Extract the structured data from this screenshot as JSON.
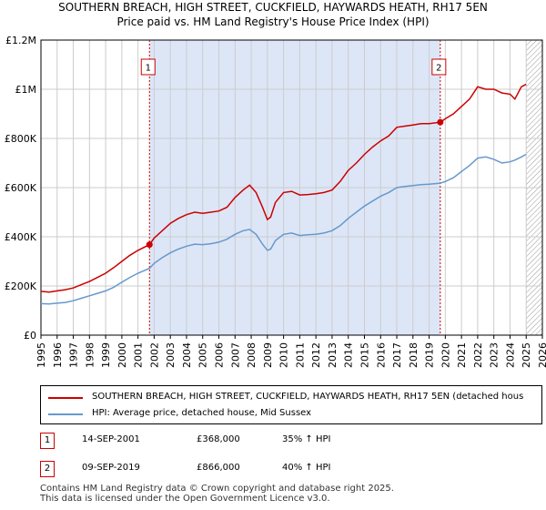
{
  "title_line1": "SOUTHERN BREACH, HIGH STREET, CUCKFIELD, HAYWARDS HEATH, RH17 5EN",
  "title_line2": "Price paid vs. HM Land Registry's House Price Index (HPI)",
  "colors": {
    "property": "#cc0000",
    "hpi": "#6699cc",
    "shade": "#dde6f7",
    "grid": "#cccccc"
  },
  "legend": {
    "property_label": "SOUTHERN BREACH, HIGH STREET, CUCKFIELD, HAYWARDS HEATH, RH17 5EN (detached hous",
    "hpi_label": "HPI: Average price, detached house, Mid Sussex"
  },
  "transactions": [
    {
      "id": "1",
      "date": "14-SEP-2001",
      "price": "£368,000",
      "hpi_change": "35% ↑ HPI"
    },
    {
      "id": "2",
      "date": "09-SEP-2019",
      "price": "£866,000",
      "hpi_change": "40% ↑ HPI"
    }
  ],
  "footer": {
    "line1": "Contains HM Land Registry data © Crown copyright and database right 2025.",
    "line2": "This data is licensed under the Open Government Licence v3.0."
  },
  "chart_data": {
    "type": "line",
    "xlim": [
      1995,
      2026
    ],
    "ylim": [
      0,
      1200000
    ],
    "yticks": [
      {
        "value": 0,
        "label": "£0"
      },
      {
        "value": 200000,
        "label": "£200K"
      },
      {
        "value": 400000,
        "label": "£400K"
      },
      {
        "value": 600000,
        "label": "£600K"
      },
      {
        "value": 800000,
        "label": "£800K"
      },
      {
        "value": 1000000,
        "label": "£1M"
      },
      {
        "value": 1200000,
        "label": "£1.2M"
      }
    ],
    "xticks": [
      "1995",
      "1996",
      "1997",
      "1998",
      "1999",
      "2000",
      "2001",
      "2002",
      "2003",
      "2004",
      "2005",
      "2006",
      "2007",
      "2008",
      "2009",
      "2010",
      "2011",
      "2012",
      "2013",
      "2014",
      "2015",
      "2016",
      "2017",
      "2018",
      "2019",
      "2020",
      "2021",
      "2022",
      "2023",
      "2024",
      "2025",
      "2026"
    ],
    "shaded_period": [
      2001.71,
      2019.69
    ],
    "hatched_from": 2025.0,
    "sales": [
      {
        "label": "1",
        "x": 2001.71,
        "y": 368000
      },
      {
        "label": "2",
        "x": 2019.69,
        "y": 866000
      }
    ],
    "series": [
      {
        "name": "property",
        "x": [
          1995.0,
          1995.5,
          1996.0,
          1996.5,
          1997.0,
          1997.5,
          1998.0,
          1998.5,
          1999.0,
          1999.5,
          2000.0,
          2000.5,
          2001.0,
          2001.71,
          2002.0,
          2002.5,
          2003.0,
          2003.5,
          2004.0,
          2004.5,
          2005.0,
          2005.5,
          2006.0,
          2006.5,
          2007.0,
          2007.5,
          2007.9,
          2008.3,
          2008.7,
          2009.0,
          2009.2,
          2009.5,
          2010.0,
          2010.5,
          2011.0,
          2011.5,
          2012.0,
          2012.5,
          2013.0,
          2013.5,
          2014.0,
          2014.5,
          2015.0,
          2015.5,
          2016.0,
          2016.5,
          2017.0,
          2017.5,
          2018.0,
          2018.5,
          2019.0,
          2019.69,
          2020.0,
          2020.5,
          2021.0,
          2021.5,
          2022.0,
          2022.5,
          2023.0,
          2023.5,
          2024.0,
          2024.3,
          2024.7,
          2025.0
        ],
        "y": [
          178000,
          175000,
          180000,
          185000,
          192000,
          205000,
          218000,
          235000,
          252000,
          275000,
          300000,
          325000,
          345000,
          368000,
          395000,
          425000,
          455000,
          475000,
          490000,
          500000,
          495000,
          500000,
          505000,
          520000,
          560000,
          590000,
          610000,
          580000,
          520000,
          470000,
          480000,
          540000,
          580000,
          585000,
          570000,
          572000,
          575000,
          580000,
          590000,
          625000,
          670000,
          700000,
          735000,
          765000,
          790000,
          810000,
          845000,
          850000,
          855000,
          860000,
          860000,
          866000,
          880000,
          900000,
          930000,
          960000,
          1010000,
          1000000,
          1000000,
          985000,
          980000,
          960000,
          1010000,
          1020000
        ]
      },
      {
        "name": "hpi",
        "x": [
          1995.0,
          1995.5,
          1996.0,
          1996.5,
          1997.0,
          1997.5,
          1998.0,
          1998.5,
          1999.0,
          1999.5,
          2000.0,
          2000.5,
          2001.0,
          2001.71,
          2002.0,
          2002.5,
          2003.0,
          2003.5,
          2004.0,
          2004.5,
          2005.0,
          2005.5,
          2006.0,
          2006.5,
          2007.0,
          2007.5,
          2007.9,
          2008.3,
          2008.7,
          2009.0,
          2009.2,
          2009.5,
          2010.0,
          2010.5,
          2011.0,
          2011.5,
          2012.0,
          2012.5,
          2013.0,
          2013.5,
          2014.0,
          2014.5,
          2015.0,
          2015.5,
          2016.0,
          2016.5,
          2017.0,
          2017.5,
          2018.0,
          2018.5,
          2019.0,
          2019.69,
          2020.0,
          2020.5,
          2021.0,
          2021.5,
          2022.0,
          2022.5,
          2023.0,
          2023.5,
          2024.0,
          2024.3,
          2024.7,
          2025.0
        ],
        "y": [
          128000,
          127000,
          130000,
          133000,
          140000,
          150000,
          160000,
          170000,
          180000,
          195000,
          215000,
          235000,
          252000,
          272000,
          292000,
          315000,
          335000,
          350000,
          362000,
          370000,
          368000,
          372000,
          378000,
          390000,
          410000,
          425000,
          430000,
          410000,
          370000,
          345000,
          350000,
          385000,
          410000,
          415000,
          405000,
          408000,
          410000,
          415000,
          425000,
          445000,
          475000,
          500000,
          525000,
          545000,
          565000,
          580000,
          600000,
          605000,
          608000,
          612000,
          614000,
          618000,
          625000,
          640000,
          665000,
          690000,
          720000,
          725000,
          715000,
          700000,
          705000,
          712000,
          725000,
          735000
        ]
      }
    ]
  }
}
